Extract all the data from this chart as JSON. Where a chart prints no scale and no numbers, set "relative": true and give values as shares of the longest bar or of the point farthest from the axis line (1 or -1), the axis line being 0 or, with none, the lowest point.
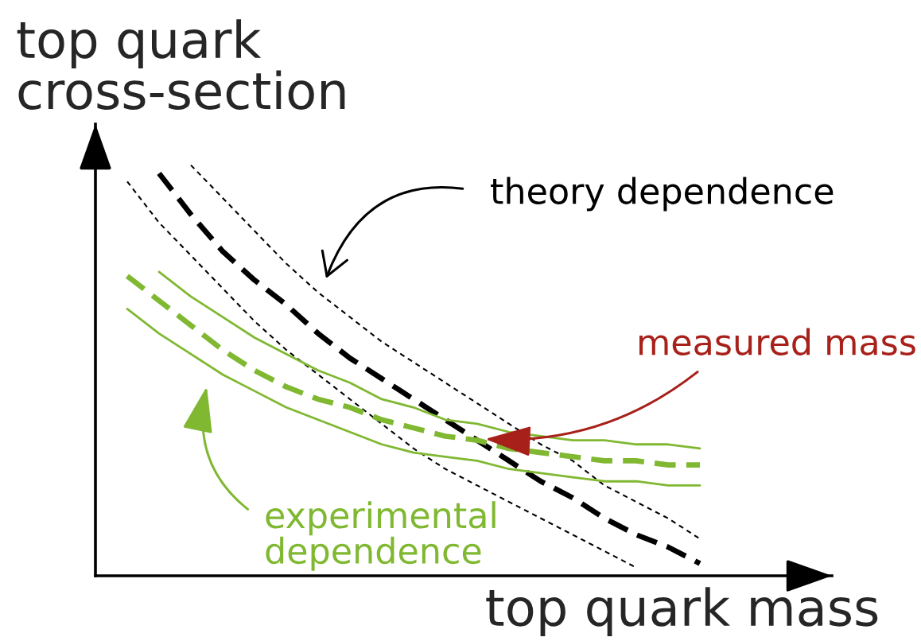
{
  "chart_data": {
    "type": "line",
    "relative": true,
    "xlabel": "top quark mass",
    "ylabel": "top quark\ncross-section",
    "annotations": [
      "theory dependence",
      "measured mass",
      "experimental\ndependence"
    ],
    "categories": [
      null,
      null,
      null,
      null,
      null,
      null,
      null,
      null,
      null,
      null,
      null,
      null,
      null,
      null,
      null,
      null,
      null,
      null,
      null
    ],
    "series": [
      {
        "color": "#000000",
        "line_style": "dashed",
        "values": [
          null,
          0.98,
          0.88,
          0.79,
          0.72,
          0.66,
          0.59,
          0.53,
          0.48,
          0.43,
          0.38,
          0.33,
          0.28,
          0.23,
          0.19,
          0.14,
          0.1,
          0.07,
          0.03
        ]
      },
      {
        "color": "#000000",
        "line_style": "dotted",
        "values": [
          null,
          null,
          1.0,
          0.92,
          0.84,
          0.76,
          0.69,
          0.63,
          0.57,
          0.52,
          0.47,
          0.42,
          0.37,
          0.32,
          0.28,
          0.22,
          0.18,
          0.14,
          0.09
        ]
      },
      {
        "color": "#000000",
        "line_style": "dotted",
        "values": [
          0.96,
          0.86,
          0.78,
          0.7,
          0.62,
          0.55,
          0.49,
          0.43,
          0.37,
          0.31,
          0.26,
          0.22,
          0.18,
          0.14,
          0.1,
          0.06,
          0.02,
          null,
          null
        ]
      },
      {
        "color": "#80b832",
        "line_style": "dashed",
        "values": [
          0.73,
          0.67,
          0.61,
          0.55,
          0.5,
          0.46,
          0.43,
          0.41,
          0.38,
          0.36,
          0.34,
          0.33,
          0.31,
          0.3,
          0.29,
          0.28,
          0.28,
          0.27,
          0.27
        ]
      },
      {
        "color": "#80b832",
        "line_style": "solid",
        "values": [
          null,
          0.74,
          0.68,
          0.63,
          0.58,
          0.54,
          0.5,
          0.47,
          0.43,
          0.41,
          0.38,
          0.37,
          0.35,
          0.34,
          0.33,
          0.33,
          0.32,
          0.32,
          0.31
        ]
      },
      {
        "color": "#80b832",
        "line_style": "solid",
        "values": [
          0.65,
          0.59,
          0.54,
          0.49,
          0.45,
          0.41,
          0.38,
          0.35,
          0.32,
          0.3,
          0.29,
          0.28,
          0.26,
          0.25,
          0.24,
          0.23,
          0.23,
          0.22,
          0.22
        ]
      }
    ]
  }
}
